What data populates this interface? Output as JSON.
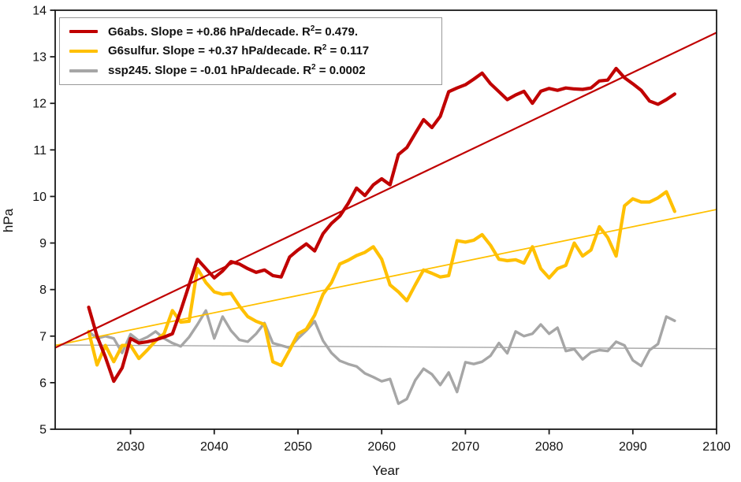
{
  "figure": {
    "title": "",
    "xlabel": "Year",
    "ylabel": "hPa"
  },
  "legend": {
    "position": "upper left",
    "border_color": "#999999",
    "items": [
      {
        "series": "G6abs",
        "color": "#c00000",
        "pre": "G6abs. Slope = +0.86 hPa/decade. R",
        "sup": "2",
        "post": "= 0.479."
      },
      {
        "series": "G6sulfur",
        "color": "#ffc000",
        "pre": "G6sulfur. Slope = +0.37 hPa/decade. R",
        "sup": "2",
        "post": " = 0.117"
      },
      {
        "series": "ssp245",
        "color": "#a6a6a6",
        "pre": "ssp245. Slope = -0.01 hPa/decade. R",
        "sup": "2",
        "post": " = 0.0002"
      }
    ]
  },
  "chart_data": {
    "type": "line",
    "title": "",
    "xlabel": "Year",
    "ylabel": "hPa",
    "xlim": [
      2021,
      2100
    ],
    "ylim": [
      5,
      14
    ],
    "xticks": [
      2030,
      2040,
      2050,
      2060,
      2070,
      2080,
      2090,
      2100
    ],
    "yticks": [
      5,
      6,
      7,
      8,
      9,
      10,
      11,
      12,
      13,
      14
    ],
    "grid": false,
    "legend_position": "upper left",
    "x": [
      2025,
      2026,
      2027,
      2028,
      2029,
      2030,
      2031,
      2032,
      2033,
      2034,
      2035,
      2036,
      2037,
      2038,
      2039,
      2040,
      2041,
      2042,
      2043,
      2044,
      2045,
      2046,
      2047,
      2048,
      2049,
      2050,
      2051,
      2052,
      2053,
      2054,
      2055,
      2056,
      2057,
      2058,
      2059,
      2060,
      2061,
      2062,
      2063,
      2064,
      2065,
      2066,
      2067,
      2068,
      2069,
      2070,
      2071,
      2072,
      2073,
      2074,
      2075,
      2076,
      2077,
      2078,
      2079,
      2080,
      2081,
      2082,
      2083,
      2084,
      2085,
      2086,
      2087,
      2088,
      2089,
      2090,
      2091,
      2092,
      2093,
      2094,
      2095
    ],
    "series": [
      {
        "name": "G6abs",
        "color": "#c00000",
        "width": 4.2,
        "values": [
          7.62,
          7.0,
          6.55,
          6.03,
          6.32,
          6.95,
          6.85,
          6.88,
          6.92,
          6.98,
          7.05,
          7.55,
          8.1,
          8.65,
          8.45,
          8.25,
          8.4,
          8.6,
          8.55,
          8.45,
          8.37,
          8.42,
          8.3,
          8.27,
          8.7,
          8.85,
          8.98,
          8.83,
          9.2,
          9.42,
          9.58,
          9.85,
          10.18,
          10.02,
          10.25,
          10.38,
          10.25,
          10.9,
          11.05,
          11.35,
          11.65,
          11.48,
          11.72,
          12.25,
          12.33,
          12.4,
          12.52,
          12.65,
          12.42,
          12.25,
          12.08,
          12.18,
          12.26,
          12.0,
          12.26,
          12.32,
          12.28,
          12.33,
          12.31,
          12.3,
          12.33,
          12.48,
          12.5,
          12.75,
          12.55,
          12.42,
          12.28,
          12.05,
          11.98,
          12.08,
          12.2
        ]
      },
      {
        "name": "G6sulfur",
        "color": "#ffc000",
        "width": 4.2,
        "values": [
          7.1,
          6.38,
          6.8,
          6.45,
          6.8,
          6.8,
          6.52,
          6.7,
          6.9,
          7.05,
          7.55,
          7.3,
          7.32,
          8.45,
          8.15,
          7.95,
          7.9,
          7.92,
          7.65,
          7.42,
          7.32,
          7.25,
          6.45,
          6.37,
          6.7,
          7.05,
          7.15,
          7.45,
          7.9,
          8.15,
          8.55,
          8.63,
          8.73,
          8.8,
          8.92,
          8.65,
          8.1,
          7.95,
          7.76,
          8.1,
          8.42,
          8.35,
          8.27,
          8.3,
          9.05,
          9.02,
          9.06,
          9.18,
          8.95,
          8.65,
          8.62,
          8.64,
          8.57,
          8.92,
          8.45,
          8.25,
          8.45,
          8.52,
          9.0,
          8.72,
          8.85,
          9.35,
          9.12,
          8.72,
          9.8,
          9.95,
          9.88,
          9.88,
          9.97,
          10.1,
          9.68
        ]
      },
      {
        "name": "ssp245",
        "color": "#a6a6a6",
        "width": 3.4,
        "values": [
          7.1,
          6.95,
          7.0,
          6.95,
          6.64,
          7.04,
          6.9,
          6.98,
          7.1,
          6.95,
          6.85,
          6.78,
          6.98,
          7.25,
          7.55,
          6.95,
          7.42,
          7.12,
          6.92,
          6.88,
          7.05,
          7.28,
          6.85,
          6.8,
          6.75,
          6.95,
          7.12,
          7.32,
          6.9,
          6.64,
          6.47,
          6.4,
          6.35,
          6.2,
          6.12,
          6.03,
          6.08,
          5.55,
          5.65,
          6.05,
          6.3,
          6.18,
          5.95,
          6.22,
          5.8,
          6.44,
          6.4,
          6.45,
          6.58,
          6.85,
          6.63,
          7.1,
          7.0,
          7.05,
          7.25,
          7.05,
          7.18,
          6.68,
          6.72,
          6.5,
          6.65,
          6.7,
          6.68,
          6.88,
          6.8,
          6.48,
          6.36,
          6.7,
          6.83,
          7.42,
          7.33
        ]
      }
    ],
    "trend_lines": [
      {
        "name": "G6abs trend",
        "color": "#c00000",
        "width": 2.2,
        "x": [
          2021,
          2100
        ],
        "y": [
          6.75,
          13.52
        ],
        "slope_hpa_per_decade": 0.86,
        "r2": 0.479
      },
      {
        "name": "G6sulfur trend",
        "color": "#ffc000",
        "width": 1.8,
        "x": [
          2021,
          2100
        ],
        "y": [
          6.8,
          9.72
        ],
        "slope_hpa_per_decade": 0.37,
        "r2": 0.117
      },
      {
        "name": "ssp245 trend",
        "color": "#a6a6a6",
        "width": 1.4,
        "x": [
          2021,
          2100
        ],
        "y": [
          6.81,
          6.73
        ],
        "slope_hpa_per_decade": -0.01,
        "r2": 0.0002
      }
    ]
  }
}
